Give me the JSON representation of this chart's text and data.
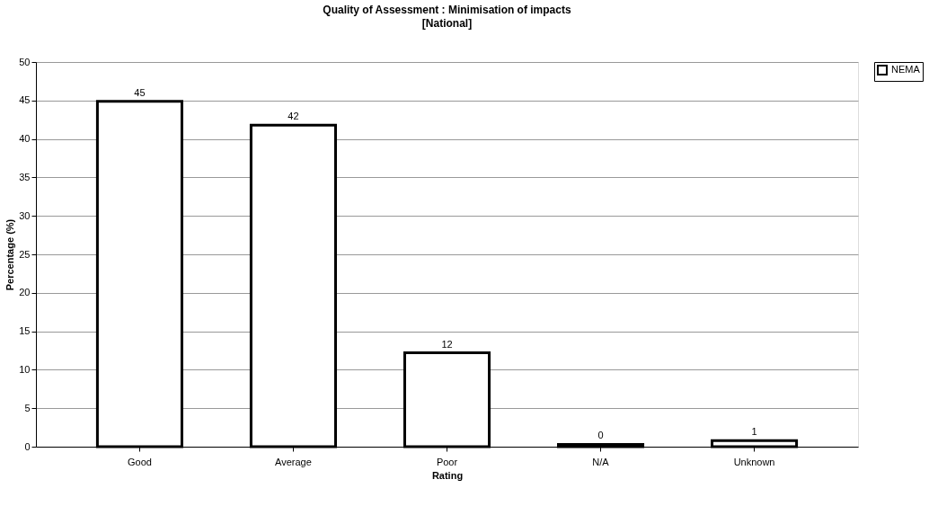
{
  "chart_data": {
    "type": "bar",
    "title": "Quality of Assessment : Minimisation of impacts",
    "subtitle": "[National]",
    "xlabel": "Rating",
    "ylabel": "Percentage (%)",
    "categories": [
      "Good",
      "Average",
      "Poor",
      "N/A",
      "Unknown"
    ],
    "series": [
      {
        "name": "NEMA",
        "color": "#ffffff",
        "values": [
          44.9,
          41.8,
          12.2,
          0.3,
          0.8
        ],
        "value_labels": [
          "45",
          "42",
          "12",
          "0",
          "1"
        ]
      }
    ],
    "ylim": [
      0,
      50
    ],
    "yticks": [
      0,
      5,
      10,
      15,
      20,
      25,
      30,
      35,
      40,
      45,
      50
    ],
    "grid": "y",
    "legend": "right"
  }
}
